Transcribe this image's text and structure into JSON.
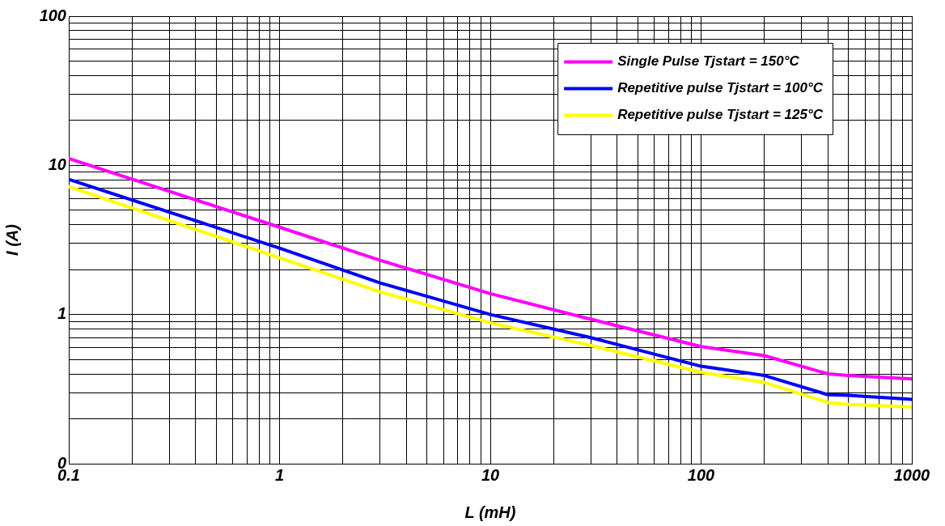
{
  "chart_data": {
    "type": "line",
    "xlabel": "L (mH)",
    "ylabel": "I (A)",
    "log": "xy",
    "grid": true,
    "legend": "top right",
    "marker": "none",
    "line_style": "solid",
    "x": [
      0.1,
      1,
      3,
      10,
      30,
      100,
      200,
      400,
      500,
      1000
    ],
    "xlim": [
      0.1,
      1000
    ],
    "xticks": [
      0.1,
      {
        "value": 0.2,
        "label": null
      },
      {
        "value": 0.3,
        "label": null
      },
      {
        "value": 0.4,
        "label": null
      },
      {
        "value": 0.5,
        "label": null
      },
      {
        "value": 0.6,
        "label": null
      },
      {
        "value": 0.7,
        "label": null
      },
      {
        "value": 0.8,
        "label": null
      },
      {
        "value": 0.9,
        "label": null
      },
      1,
      {
        "value": 2,
        "label": null
      },
      {
        "value": 3,
        "label": null
      },
      {
        "value": 4,
        "label": null
      },
      {
        "value": 5,
        "label": null
      },
      {
        "value": 6,
        "label": null
      },
      {
        "value": 7,
        "label": null
      },
      {
        "value": 8,
        "label": null
      },
      {
        "value": 9,
        "label": null
      },
      10,
      {
        "value": 20,
        "label": null
      },
      {
        "value": 30,
        "label": null
      },
      {
        "value": 40,
        "label": null
      },
      {
        "value": 50,
        "label": null
      },
      {
        "value": 60,
        "label": null
      },
      {
        "value": 70,
        "label": null
      },
      {
        "value": 80,
        "label": null
      },
      {
        "value": 90,
        "label": null
      },
      100,
      {
        "value": 200,
        "label": null
      },
      {
        "value": 300,
        "label": null
      },
      {
        "value": 400,
        "label": null
      },
      {
        "value": 500,
        "label": null
      },
      {
        "value": 600,
        "label": null
      },
      {
        "value": 700,
        "label": null
      },
      {
        "value": 800,
        "label": null
      },
      {
        "value": 900,
        "label": null
      },
      1000
    ],
    "ylim": [
      0.1,
      100
    ],
    "yticks": [
      {
        "value": 0.1,
        "label": "0"
      },
      {
        "value": 0.2,
        "label": null
      },
      {
        "value": 0.3,
        "label": null
      },
      {
        "value": 0.4,
        "label": null
      },
      {
        "value": 0.5,
        "label": null
      },
      {
        "value": 0.6,
        "label": null
      },
      {
        "value": 0.7,
        "label": null
      },
      {
        "value": 0.8,
        "label": null
      },
      {
        "value": 0.9,
        "label": null
      },
      1,
      {
        "value": 2,
        "label": null
      },
      {
        "value": 3,
        "label": null
      },
      {
        "value": 4,
        "label": null
      },
      {
        "value": 5,
        "label": null
      },
      {
        "value": 6,
        "label": null
      },
      {
        "value": 7,
        "label": null
      },
      {
        "value": 8,
        "label": null
      },
      {
        "value": 9,
        "label": null
      },
      10,
      {
        "value": 20,
        "label": null
      },
      {
        "value": 30,
        "label": null
      },
      {
        "value": 40,
        "label": null
      },
      {
        "value": 50,
        "label": null
      },
      {
        "value": 60,
        "label": null
      },
      {
        "value": 70,
        "label": null
      },
      {
        "value": 80,
        "label": null
      },
      {
        "value": 90,
        "label": null
      },
      100
    ],
    "series": [
      {
        "name": "Single Pulse Tjstart = 150°C",
        "color": "#ff00ff",
        "values": [
          11.1,
          3.85,
          2.31,
          1.38,
          0.93,
          0.61,
          0.53,
          0.4,
          0.39,
          0.37
        ]
      },
      {
        "name": "Repetitive pulse Tjstart = 100°C",
        "color": "#0000ff",
        "values": [
          8.05,
          2.79,
          1.63,
          1.0,
          0.7,
          0.45,
          0.39,
          0.29,
          0.287,
          0.27
        ]
      },
      {
        "name": "Repetitive pulse Tjstart = 125°C",
        "color": "#ffff00",
        "values": [
          7.2,
          2.4,
          1.42,
          0.88,
          0.62,
          0.41,
          0.35,
          0.257,
          0.25,
          0.24
        ]
      }
    ]
  }
}
